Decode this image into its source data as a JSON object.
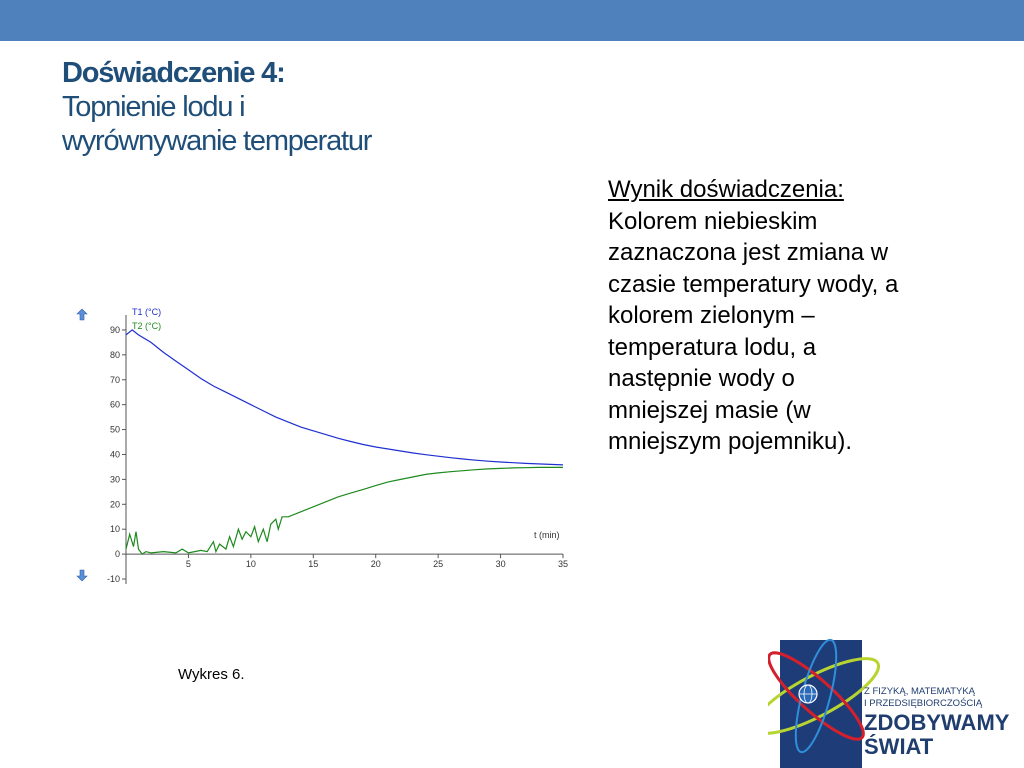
{
  "slide": {
    "title_main": "Doświadczenie 4:",
    "title_sub_line1": "Topnienie lodu i",
    "title_sub_line2": "wyrównywanie temperatur",
    "result_heading": "Wynik doświadczenia:",
    "result_lines": [
      "Kolorem niebieskim",
      "zaznaczona jest zmiana w",
      "czasie temperatury wody, a",
      "kolorem zielonym –",
      "temperatura lodu, a",
      "następnie wody o",
      "mniejszej masie (w",
      "mniejszym pojemniku)."
    ],
    "caption": "Wykres 6.",
    "colors": {
      "top_bar": "#4f81bd",
      "title": "#1f4e79"
    }
  },
  "logo": {
    "line1": "Z FIZYKĄ, MATEMATYKĄ",
    "line2": "I PRZEDSIĘBIORCZOŚCIĄ",
    "line3": "ZDOBYWAMY",
    "line4": "ŚWIAT"
  },
  "chart_data": {
    "type": "line",
    "xlabel": "t (min)",
    "x_ticks": [
      5,
      10,
      15,
      20,
      25,
      30,
      35
    ],
    "y_ticks": [
      90,
      80,
      70,
      60,
      50,
      40,
      30,
      20,
      10,
      0,
      -10
    ],
    "xlim": [
      0,
      35
    ],
    "ylim": [
      -12,
      96
    ],
    "series": [
      {
        "name": "T1 (°C)",
        "color": "#1f2fd0",
        "x": [
          0,
          0.5,
          1,
          2,
          3,
          4,
          5,
          6,
          7,
          8,
          9,
          10,
          11,
          12,
          13,
          14,
          15,
          16,
          17,
          18,
          19,
          20,
          21,
          22,
          23,
          24,
          25,
          26,
          27,
          28,
          29,
          30,
          31,
          32,
          33,
          34,
          35
        ],
        "values": [
          88,
          90,
          88,
          85,
          81,
          77.5,
          74,
          70.5,
          67.5,
          65,
          62.5,
          60,
          57.5,
          55,
          53,
          51,
          49.5,
          48,
          46.5,
          45.2,
          44,
          43,
          42.2,
          41.4,
          40.6,
          39.9,
          39.3,
          38.7,
          38.2,
          37.7,
          37.3,
          37,
          36.7,
          36.4,
          36.2,
          36.0,
          35.8
        ]
      },
      {
        "name": "T2 (°C)",
        "color": "#1e8a1e",
        "x": [
          0,
          0.3,
          0.6,
          0.8,
          1,
          1.3,
          1.6,
          2,
          3,
          4,
          4.5,
          5,
          5.5,
          6,
          6.5,
          7,
          7.2,
          7.5,
          8,
          8.3,
          8.6,
          9,
          9.3,
          9.6,
          10,
          10.3,
          10.6,
          11,
          11.3,
          11.6,
          12,
          12.2,
          12.5,
          13,
          14,
          15,
          16,
          17,
          18,
          19,
          20,
          21,
          22,
          23,
          24,
          25,
          26,
          27,
          28,
          29,
          30,
          31,
          32,
          33,
          34,
          35
        ],
        "values": [
          2,
          8,
          3,
          9,
          2,
          0,
          1,
          0.5,
          1,
          0.5,
          2,
          0.5,
          1,
          1.5,
          1,
          5,
          1,
          4,
          2,
          7,
          3,
          10,
          6,
          9,
          7,
          11,
          5,
          10,
          5,
          12,
          14,
          10,
          15,
          15,
          17,
          19,
          21,
          23,
          24.5,
          26,
          27.5,
          29,
          30,
          31,
          32,
          32.6,
          33.1,
          33.5,
          33.9,
          34.2,
          34.4,
          34.6,
          34.7,
          34.8,
          34.8,
          34.8
        ]
      }
    ]
  }
}
